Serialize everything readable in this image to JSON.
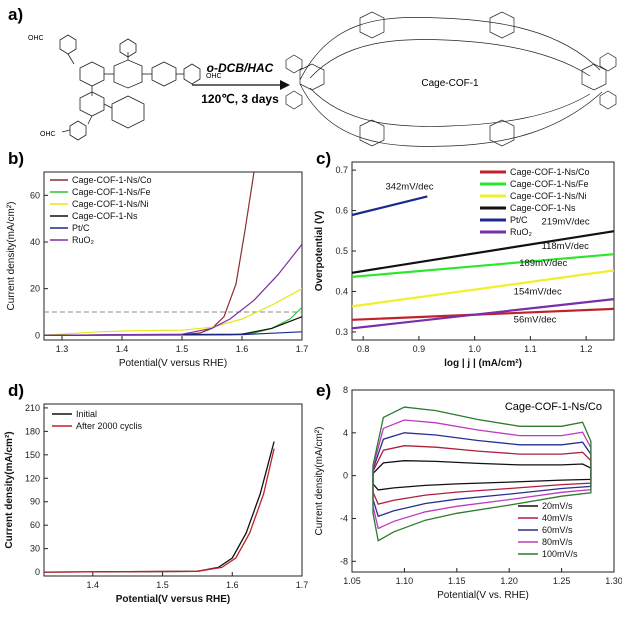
{
  "figure": {
    "panels": {
      "a": "a)",
      "b": "b)",
      "c": "c)",
      "d": "d)",
      "e": "e)"
    }
  },
  "scheme": {
    "monomer_labels": [
      "OHC",
      "OHC",
      "OHC"
    ],
    "reagent": "o-DCB/HAC",
    "conditions": "120℃, 3 days",
    "product": "Cage-COF-1"
  },
  "chart_data": [
    {
      "id": "b",
      "type": "line",
      "xlabel": "Potential(V versus RHE)",
      "ylabel": "Current density(mA/cm²)",
      "xlim": [
        1.27,
        1.7
      ],
      "ylim": [
        -2,
        70
      ],
      "xticks": [
        "1.3",
        "1.4",
        "1.5",
        "1.6",
        "1.7"
      ],
      "yticks": [
        "0",
        "20",
        "40",
        "60"
      ],
      "reference_line": {
        "y": 10,
        "style": "dashed"
      },
      "legend_position": "top-left",
      "series": [
        {
          "name": "Cage-COF-1-Ns/Co",
          "color": "#8b2e2e",
          "x": [
            1.27,
            1.5,
            1.53,
            1.55,
            1.57,
            1.59,
            1.605,
            1.62
          ],
          "y": [
            0,
            0.3,
            1,
            3,
            8,
            22,
            45,
            70
          ]
        },
        {
          "name": "Cage-COF-1-Ns/Fe",
          "color": "#2ec43a",
          "x": [
            1.27,
            1.58,
            1.62,
            1.65,
            1.68,
            1.7
          ],
          "y": [
            0,
            0.2,
            1,
            3,
            7,
            12
          ]
        },
        {
          "name": "Cage-COF-1-Ns/Ni",
          "color": "#e6e617",
          "x": [
            1.27,
            1.36,
            1.42,
            1.5,
            1.55,
            1.6,
            1.65,
            1.7
          ],
          "y": [
            0,
            1.5,
            2,
            2.2,
            3.5,
            7,
            13,
            20
          ]
        },
        {
          "name": "Cage-COF-1-Ns",
          "color": "#111111",
          "x": [
            1.27,
            1.6,
            1.65,
            1.7
          ],
          "y": [
            0,
            0.5,
            3,
            8
          ]
        },
        {
          "name": "Pt/C",
          "color": "#1b2a8c",
          "x": [
            1.27,
            1.6,
            1.7
          ],
          "y": [
            0,
            0.3,
            1.5
          ]
        },
        {
          "name": "RuO₂",
          "color": "#7a2ea8",
          "x": [
            1.27,
            1.5,
            1.55,
            1.58,
            1.62,
            1.66,
            1.7
          ],
          "y": [
            0,
            0.5,
            3,
            7,
            15,
            26,
            39
          ]
        }
      ]
    },
    {
      "id": "c",
      "type": "line",
      "xlabel": "log | j | (mA/cm²)",
      "ylabel": "Overpotential (V)",
      "xlim": [
        0.78,
        1.25
      ],
      "ylim": [
        0.28,
        0.72
      ],
      "xticks": [
        "0.8",
        "0.9",
        "1.0",
        "1.1",
        "1.2"
      ],
      "yticks": [
        "0.3",
        "0.4",
        "0.5",
        "0.6",
        "0.7"
      ],
      "legend_position": "top-right",
      "series": [
        {
          "name": "Cage-COF-1-Ns/Co",
          "color": "#c0222a",
          "x": [
            0.78,
            1.25
          ],
          "y": [
            0.33,
            0.357
          ],
          "slope_label": "56mV/dec"
        },
        {
          "name": "Cage-COF-1-Ns/Fe",
          "color": "#2ee62e",
          "x": [
            0.78,
            1.25
          ],
          "y": [
            0.436,
            0.492
          ],
          "slope_label": "118mV/dec"
        },
        {
          "name": "Cage-COF-1-Ns/Ni",
          "color": "#f0f02a",
          "x": [
            0.78,
            1.25
          ],
          "y": [
            0.363,
            0.452
          ],
          "slope_label": "189mV/dec"
        },
        {
          "name": "Cage-COF-1-Ns",
          "color": "#111111",
          "x": [
            0.78,
            1.25
          ],
          "y": [
            0.446,
            0.549
          ],
          "slope_label": "219mV/dec"
        },
        {
          "name": "Pt/C",
          "color": "#1b2a8c",
          "x": [
            0.78,
            0.915
          ],
          "y": [
            0.589,
            0.635
          ],
          "slope_label": "342mV/dec"
        },
        {
          "name": "RuO₂",
          "color": "#7a2ea8",
          "x": [
            0.78,
            1.25
          ],
          "y": [
            0.309,
            0.381
          ],
          "slope_label": "154mV/dec"
        }
      ]
    },
    {
      "id": "d",
      "type": "line",
      "xlabel": "Potential(V versus RHE)",
      "ylabel": "Current density(mA/cm²)",
      "xlim": [
        1.33,
        1.7
      ],
      "ylim": [
        -5,
        215
      ],
      "xticks": [
        "1.4",
        "1.5",
        "1.6",
        "1.7"
      ],
      "yticks": [
        "0",
        "30",
        "60",
        "90",
        "120",
        "150",
        "180",
        "210"
      ],
      "legend_position": "top-left",
      "series": [
        {
          "name": "Initial",
          "color": "#111111",
          "x": [
            1.33,
            1.55,
            1.58,
            1.6,
            1.62,
            1.64,
            1.66
          ],
          "y": [
            0,
            1,
            6,
            18,
            50,
            100,
            167
          ]
        },
        {
          "name": "After 2000 cyclis",
          "color": "#c0222a",
          "x": [
            1.33,
            1.55,
            1.585,
            1.605,
            1.625,
            1.645,
            1.66
          ],
          "y": [
            0,
            1,
            6,
            18,
            50,
            100,
            158
          ]
        }
      ]
    },
    {
      "id": "e",
      "type": "line",
      "title": "Cage-COF-1-Ns/Co",
      "xlabel": "Potential(V vs. RHE)",
      "ylabel": "Current density(mA/cm²)",
      "xlim": [
        1.05,
        1.3
      ],
      "ylim": [
        -9,
        8
      ],
      "xticks": [
        "1.05",
        "1.10",
        "1.15",
        "1.20",
        "1.25",
        "1.30"
      ],
      "yticks": [
        "-8",
        "-4",
        "0",
        "4",
        "8"
      ],
      "legend_position": "bottom-right",
      "series": [
        {
          "name": "20mV/s",
          "color": "#111111",
          "peak": 1.4
        },
        {
          "name": "40mV/s",
          "color": "#b01e3c",
          "peak": 2.8
        },
        {
          "name": "60mV/s",
          "color": "#2a2f8f",
          "peak": 4.0
        },
        {
          "name": "80mV/s",
          "color": "#c03ac0",
          "peak": 5.2
        },
        {
          "name": "100mV/s",
          "color": "#2e7a2e",
          "peak": 6.4
        }
      ]
    }
  ]
}
